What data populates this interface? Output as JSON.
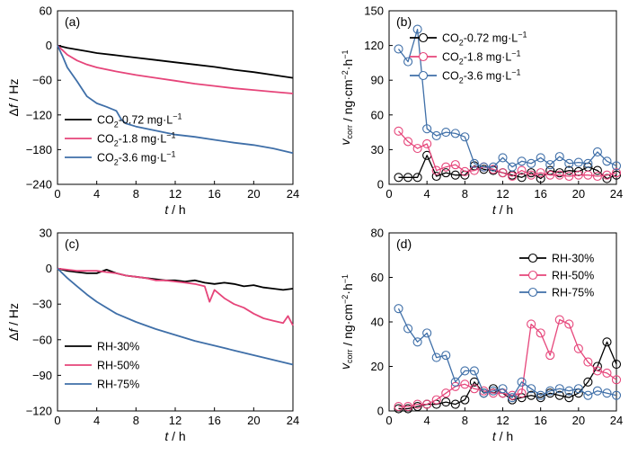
{
  "chart_data": [
    {
      "panel": "(a)",
      "type": "line",
      "xlabel": "t / h",
      "ylabel": "Δf / Hz",
      "xlim": [
        0,
        24
      ],
      "ylim": [
        -240,
        60
      ],
      "xticks": [
        0,
        4,
        8,
        12,
        16,
        20,
        24
      ],
      "yticks": [
        60,
        0,
        -60,
        -120,
        -180,
        -240
      ],
      "legend_position": "bottom-left",
      "series": [
        {
          "name": "CO2-0.72 mg·L-1",
          "color": "#000000",
          "x": [
            0,
            1,
            2,
            3,
            4,
            6,
            8,
            10,
            12,
            14,
            16,
            18,
            20,
            22,
            24
          ],
          "y": [
            0,
            -4,
            -7,
            -10,
            -13,
            -17,
            -21,
            -25,
            -29,
            -33,
            -37,
            -42,
            -46,
            -51,
            -56
          ]
        },
        {
          "name": "CO2-1.8 mg·L-1",
          "color": "#e6457a",
          "x": [
            0,
            0.5,
            1,
            2,
            3,
            4,
            6,
            8,
            10,
            12,
            14,
            16,
            18,
            20,
            22,
            24
          ],
          "y": [
            0,
            -8,
            -16,
            -26,
            -33,
            -38,
            -45,
            -51,
            -56,
            -61,
            -66,
            -70,
            -74,
            -77,
            -80,
            -83
          ]
        },
        {
          "name": "CO2-3.6 mg·L-1",
          "color": "#3f6fa8",
          "x": [
            0,
            0.5,
            1,
            2,
            3,
            4,
            5,
            6,
            6.5,
            7,
            8,
            10,
            12,
            14,
            16,
            18,
            20,
            22,
            24
          ],
          "y": [
            0,
            -18,
            -38,
            -62,
            -88,
            -100,
            -106,
            -113,
            -128,
            -135,
            -140,
            -147,
            -154,
            -158,
            -163,
            -168,
            -172,
            -178,
            -186
          ]
        }
      ]
    },
    {
      "panel": "(b)",
      "type": "line",
      "xlabel": "t / h",
      "ylabel": "vcorr / ng·cm-2·h-1",
      "xlim": [
        0,
        24
      ],
      "ylim": [
        0,
        150
      ],
      "xticks": [
        0,
        4,
        8,
        12,
        16,
        20,
        24
      ],
      "yticks": [
        0,
        30,
        60,
        90,
        120,
        150
      ],
      "legend_position": "top-right",
      "series": [
        {
          "name": "CO2-0.72 mg·L-1",
          "color": "#000000",
          "x": [
            1,
            2,
            3,
            4,
            5,
            6,
            7,
            8,
            9,
            10,
            11,
            12,
            13,
            14,
            15,
            16,
            17,
            18,
            19,
            20,
            21,
            22,
            23,
            24
          ],
          "y": [
            6,
            6,
            6,
            25,
            7,
            10,
            8,
            8,
            16,
            13,
            12,
            10,
            8,
            6,
            10,
            5,
            12,
            10,
            12,
            11,
            15,
            12,
            5,
            8
          ]
        },
        {
          "name": "CO2-1.8 mg·L-1",
          "color": "#e6457a",
          "x": [
            1,
            2,
            3,
            4,
            5,
            6,
            7,
            8,
            9,
            10,
            11,
            12,
            13,
            14,
            15,
            16,
            17,
            18,
            19,
            20,
            21,
            22,
            23,
            24
          ],
          "y": [
            46,
            37,
            31,
            35,
            12,
            15,
            17,
            11,
            12,
            15,
            13,
            10,
            7,
            12,
            8,
            10,
            8,
            8,
            7,
            8,
            8,
            7,
            8,
            10
          ]
        },
        {
          "name": "CO2-3.6 mg·L-1",
          "color": "#3f6fa8",
          "x": [
            1,
            2,
            3,
            4,
            5,
            6,
            7,
            8,
            9,
            10,
            11,
            12,
            13,
            14,
            15,
            16,
            17,
            18,
            19,
            20,
            21,
            22,
            23,
            24
          ],
          "y": [
            117,
            106,
            134,
            48,
            42,
            45,
            44,
            41,
            18,
            15,
            15,
            23,
            15,
            20,
            18,
            23,
            17,
            24,
            18,
            19,
            18,
            28,
            20,
            16
          ]
        }
      ]
    },
    {
      "panel": "(c)",
      "type": "line",
      "xlabel": "t / h",
      "ylabel": "Δf / Hz",
      "xlim": [
        0,
        24
      ],
      "ylim": [
        -120,
        30
      ],
      "xticks": [
        0,
        4,
        8,
        12,
        16,
        20,
        24
      ],
      "yticks": [
        30,
        0,
        -30,
        -60,
        -90,
        -120
      ],
      "legend_position": "bottom-left",
      "series": [
        {
          "name": "RH-30%",
          "color": "#000000",
          "x": [
            0,
            1,
            2,
            3,
            4,
            5,
            6,
            7,
            8,
            9,
            10,
            11,
            12,
            13,
            14,
            15,
            16,
            17,
            18,
            19,
            20,
            21,
            22,
            23,
            24
          ],
          "y": [
            0,
            -2,
            -3,
            -4,
            -4,
            -1,
            -4,
            -6,
            -7,
            -8,
            -9,
            -10,
            -10,
            -11,
            -10,
            -12,
            -13,
            -12,
            -13,
            -15,
            -14,
            -16,
            -17,
            -18,
            -17
          ]
        },
        {
          "name": "RH-50%",
          "color": "#e6457a",
          "x": [
            0,
            1,
            2,
            3,
            4,
            5,
            6,
            7,
            8,
            9,
            10,
            11,
            12,
            13,
            14,
            15,
            15.5,
            16,
            17,
            18,
            19,
            20,
            21,
            22,
            23,
            23.5,
            24
          ],
          "y": [
            0,
            -1,
            -2,
            -2,
            -2,
            -3,
            -4,
            -6,
            -7,
            -8,
            -10,
            -10,
            -11,
            -12,
            -13,
            -15,
            -28,
            -18,
            -25,
            -30,
            -33,
            -38,
            -42,
            -44,
            -46,
            -40,
            -48
          ]
        },
        {
          "name": "RH-75%",
          "color": "#3f6fa8",
          "x": [
            0,
            1,
            2,
            3,
            4,
            6,
            8,
            10,
            12,
            14,
            16,
            18,
            20,
            22,
            24
          ],
          "y": [
            0,
            -8,
            -15,
            -22,
            -28,
            -38,
            -45,
            -51,
            -56,
            -61,
            -65,
            -69,
            -73,
            -77,
            -81
          ]
        }
      ]
    },
    {
      "panel": "(d)",
      "type": "line",
      "xlabel": "t / h",
      "ylabel": "vcorr / ng·cm-2·h-1",
      "xlim": [
        0,
        24
      ],
      "ylim": [
        0,
        80
      ],
      "xticks": [
        0,
        4,
        8,
        12,
        16,
        20,
        24
      ],
      "yticks": [
        0,
        20,
        40,
        60,
        80
      ],
      "legend_position": "top-right",
      "series": [
        {
          "name": "RH-30%",
          "color": "#000000",
          "x": [
            1,
            2,
            3,
            4,
            5,
            6,
            7,
            8,
            9,
            10,
            11,
            12,
            13,
            14,
            15,
            16,
            17,
            18,
            19,
            20,
            21,
            22,
            23,
            24
          ],
          "y": [
            1,
            1,
            2,
            3,
            3,
            4,
            3,
            5,
            13,
            8,
            10,
            8,
            5,
            6,
            7,
            6,
            8,
            7,
            6,
            8,
            13,
            20,
            31,
            21
          ]
        },
        {
          "name": "RH-50%",
          "color": "#e6457a",
          "x": [
            1,
            2,
            3,
            4,
            5,
            6,
            7,
            8,
            9,
            10,
            11,
            12,
            13,
            14,
            15,
            16,
            17,
            18,
            19,
            20,
            21,
            22,
            23,
            24
          ],
          "y": [
            2,
            2,
            3,
            3,
            5,
            8,
            11,
            12,
            10,
            9,
            8,
            8,
            7,
            8,
            39,
            35,
            25,
            41,
            39,
            28,
            22,
            18,
            17,
            14
          ]
        },
        {
          "name": "RH-75%",
          "color": "#3f6fa8",
          "x": [
            1,
            2,
            3,
            4,
            5,
            6,
            7,
            8,
            9,
            10,
            11,
            12,
            13,
            14,
            15,
            16,
            17,
            18,
            19,
            20,
            21,
            22,
            23,
            24
          ],
          "y": [
            46,
            37,
            31,
            35,
            24,
            25,
            13,
            18,
            18,
            8,
            9,
            10,
            6,
            13,
            10,
            7,
            9,
            10,
            9,
            10,
            7,
            9,
            8,
            7
          ]
        }
      ]
    }
  ]
}
